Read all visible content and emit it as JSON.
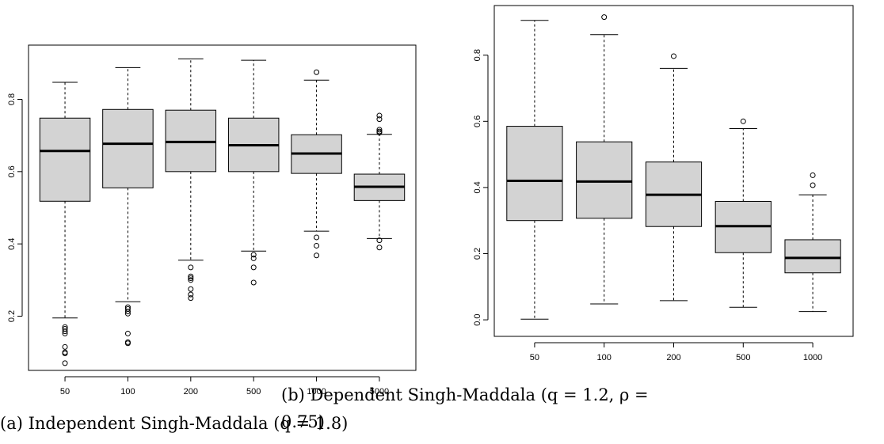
{
  "chart_data": [
    {
      "type": "box",
      "caption": "(a) Independent Singh-Maddala (q = 1.8)",
      "categories": [
        "50",
        "100",
        "200",
        "500",
        "1000",
        "5000"
      ],
      "yticks": [
        "0.2",
        "0.4",
        "0.6",
        "0.8"
      ],
      "ylim": [
        0.05,
        0.95
      ],
      "boxes": [
        {
          "lower_whisker": 0.195,
          "q1": 0.518,
          "median": 0.657,
          "q3": 0.748,
          "upper_whisker": 0.847,
          "outliers": [
            0.17,
            0.165,
            0.158,
            0.152,
            0.115,
            0.1,
            0.097,
            0.07
          ]
        },
        {
          "lower_whisker": 0.24,
          "q1": 0.555,
          "median": 0.677,
          "q3": 0.772,
          "upper_whisker": 0.888,
          "outliers": [
            0.225,
            0.22,
            0.213,
            0.207,
            0.152,
            0.128,
            0.125
          ]
        },
        {
          "lower_whisker": 0.355,
          "q1": 0.6,
          "median": 0.682,
          "q3": 0.77,
          "upper_whisker": 0.912,
          "outliers": [
            0.335,
            0.31,
            0.305,
            0.3,
            0.275,
            0.26,
            0.25
          ]
        },
        {
          "lower_whisker": 0.38,
          "q1": 0.6,
          "median": 0.673,
          "q3": 0.748,
          "upper_whisker": 0.908,
          "outliers": [
            0.37,
            0.36,
            0.335,
            0.293
          ]
        },
        {
          "lower_whisker": 0.435,
          "q1": 0.595,
          "median": 0.65,
          "q3": 0.702,
          "upper_whisker": 0.853,
          "outliers": [
            0.875,
            0.418,
            0.395,
            0.368
          ]
        },
        {
          "lower_whisker": 0.415,
          "q1": 0.52,
          "median": 0.558,
          "q3": 0.593,
          "upper_whisker": 0.703,
          "outliers": [
            0.755,
            0.745,
            0.716,
            0.711,
            0.708,
            0.41,
            0.39
          ]
        }
      ]
    },
    {
      "type": "box",
      "caption_line1": "(b) Dependent Singh-Maddala (q = 1.2, ρ =",
      "caption_line2": "0.75)",
      "categories": [
        "50",
        "100",
        "200",
        "500",
        "1000"
      ],
      "yticks": [
        "0.0",
        "0.2",
        "0.4",
        "0.6",
        "0.8"
      ],
      "ylim": [
        -0.05,
        0.95
      ],
      "boxes": [
        {
          "lower_whisker": 0.002,
          "q1": 0.3,
          "median": 0.42,
          "q3": 0.585,
          "upper_whisker": 0.905,
          "outliers": []
        },
        {
          "lower_whisker": 0.048,
          "q1": 0.307,
          "median": 0.418,
          "q3": 0.538,
          "upper_whisker": 0.862,
          "outliers": [
            0.915
          ]
        },
        {
          "lower_whisker": 0.058,
          "q1": 0.282,
          "median": 0.378,
          "q3": 0.477,
          "upper_whisker": 0.76,
          "outliers": [
            0.797
          ]
        },
        {
          "lower_whisker": 0.038,
          "q1": 0.203,
          "median": 0.283,
          "q3": 0.358,
          "upper_whisker": 0.578,
          "outliers": [
            0.6
          ]
        },
        {
          "lower_whisker": 0.025,
          "q1": 0.142,
          "median": 0.187,
          "q3": 0.242,
          "upper_whisker": 0.378,
          "outliers": [
            0.437,
            0.407
          ]
        }
      ]
    }
  ]
}
